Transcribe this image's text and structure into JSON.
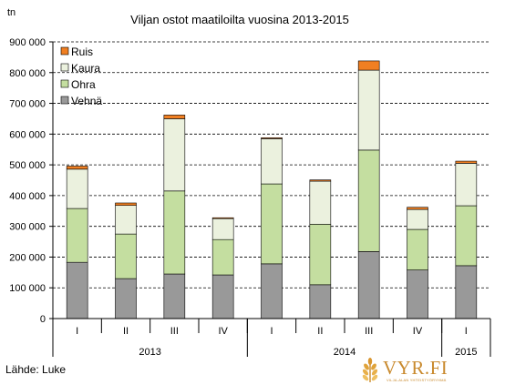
{
  "chart_data": {
    "type": "bar",
    "stacked": true,
    "title": "Viljan ostot maatiloilta vuosina 2013-2015",
    "ylabel": "tn",
    "ylim": [
      0,
      900000
    ],
    "yticks": [
      0,
      100000,
      200000,
      300000,
      400000,
      500000,
      600000,
      700000,
      800000,
      900000
    ],
    "ytick_labels": [
      "0",
      "100 000",
      "200 000",
      "300 000",
      "400 000",
      "500 000",
      "600 000",
      "700 000",
      "800 000",
      "900 000"
    ],
    "grid": "horizontal dashed",
    "legend_position": "top-left",
    "categories": [
      "I",
      "II",
      "III",
      "IV",
      "I",
      "II",
      "III",
      "IV",
      "I"
    ],
    "year_groups": [
      {
        "label": "2013",
        "count": 4
      },
      {
        "label": "2014",
        "count": 4
      },
      {
        "label": "2015",
        "count": 1
      }
    ],
    "series": [
      {
        "name": "Vehnä",
        "color": "#999999",
        "values": [
          183000,
          130000,
          145000,
          142000,
          178000,
          110000,
          218000,
          158000,
          172000
        ]
      },
      {
        "name": "Ohra",
        "color": "#c4dea0",
        "values": [
          175000,
          145000,
          270000,
          115000,
          260000,
          197000,
          330000,
          132000,
          195000
        ]
      },
      {
        "name": "Kaura",
        "color": "#ebf1de",
        "values": [
          128000,
          93000,
          235000,
          68000,
          147000,
          140000,
          260000,
          65000,
          138000
        ]
      },
      {
        "name": "Ruis",
        "color": "#f07f22",
        "values": [
          10000,
          8000,
          12000,
          3000,
          3000,
          4000,
          30000,
          7000,
          7000
        ]
      }
    ]
  },
  "source": "Lähde: Luke",
  "logo": {
    "text": "VYR.FI",
    "subtitle": "VILJA-ALAN YHTEISTYÖRYHMÄ"
  }
}
